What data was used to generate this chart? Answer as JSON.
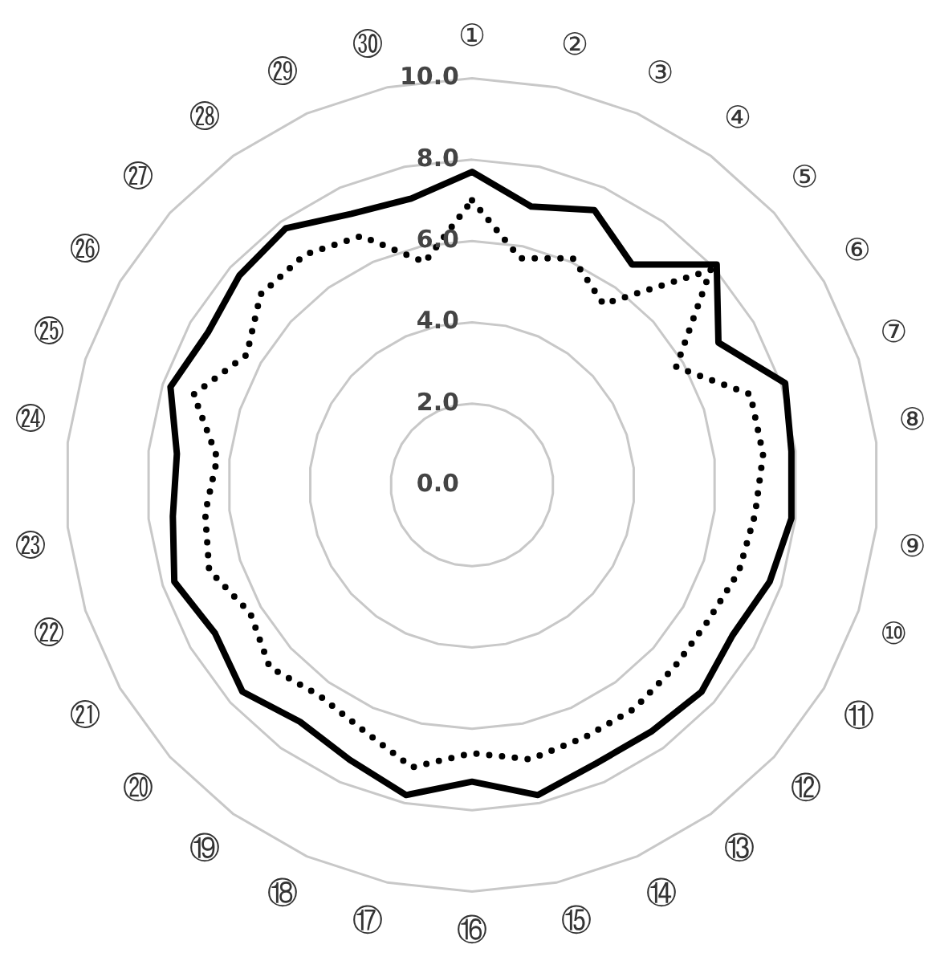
{
  "chart_data": {
    "type": "radar",
    "categories": [
      "①",
      "②",
      "③",
      "④",
      "⑤",
      "⑥",
      "⑦",
      "⑧",
      "⑨",
      "⑩",
      "⑪",
      "⑫",
      "⑬",
      "⑭",
      "⑮",
      "⑯",
      "⑰",
      "⑱",
      "⑲",
      "⑳",
      "㉑",
      "㉒",
      "㉓",
      "㉔",
      "㉕",
      "㉖",
      "㉗",
      "㉘",
      "㉙",
      "㉚"
    ],
    "series": [
      {
        "color": "#000000",
        "line_style": "solid",
        "values": [
          7.7,
          7.0,
          7.4,
          6.7,
          8.1,
          7.0,
          8.1,
          7.9,
          7.9,
          7.7,
          7.4,
          7.6,
          7.5,
          7.5,
          7.8,
          7.3,
          7.8,
          7.4,
          7.2,
          7.6,
          7.3,
          7.7,
          7.4,
          7.3,
          7.8,
          7.5,
          7.7,
          7.8,
          7.3,
          7.2
        ]
      },
      {
        "color": "#000000",
        "line_style": "dotted",
        "values": [
          7.0,
          5.7,
          6.1,
          5.5,
          7.9,
          5.8,
          7.2,
          7.2,
          7.0,
          6.9,
          6.7,
          6.7,
          6.8,
          6.8,
          6.9,
          6.6,
          7.1,
          6.6,
          6.4,
          6.7,
          6.3,
          6.8,
          6.6,
          6.3,
          7.2,
          6.4,
          7.0,
          7.0,
          6.7,
          5.6
        ]
      }
    ],
    "ylim": [
      0,
      10
    ],
    "yticks": [
      {
        "value": 0,
        "label": "0.0"
      },
      {
        "value": 2,
        "label": "2.0"
      },
      {
        "value": 4,
        "label": "4.0"
      },
      {
        "value": 6,
        "label": "6.0"
      },
      {
        "value": 8,
        "label": "8.0"
      },
      {
        "value": 10,
        "label": "10.0"
      }
    ],
    "grid": true,
    "legend": false,
    "marker": "none"
  }
}
